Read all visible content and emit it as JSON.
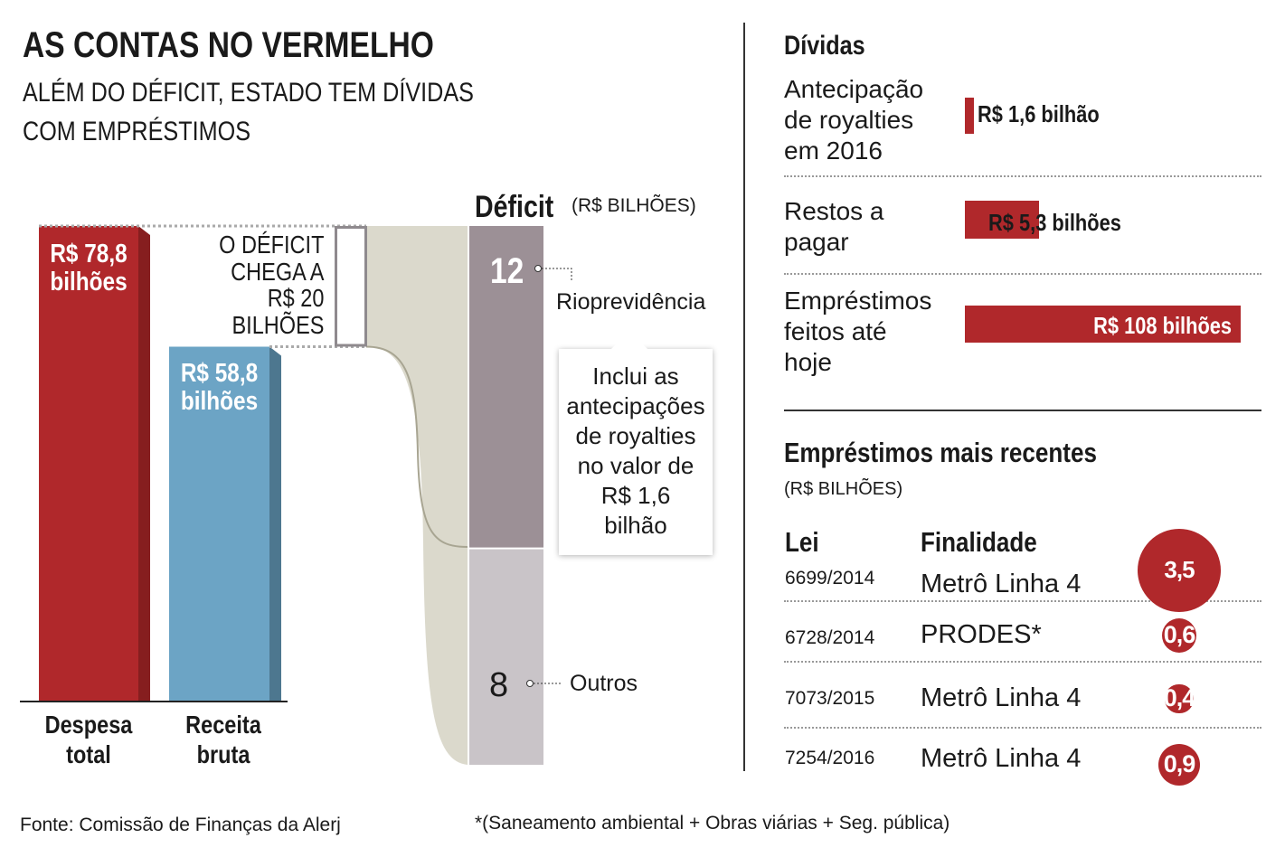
{
  "header": {
    "title": "AS CONTAS NO VERMELHO",
    "subtitle_1": "ALÉM DO DÉFICIT, ESTADO TEM DÍVIDAS",
    "subtitle_2": "COM EMPRÉSTIMOS"
  },
  "colors": {
    "red": "#b0282b",
    "red_dark": "#861e1f",
    "blue": "#6ca4c5",
    "blue_dark": "#4d778f",
    "deficit_12": "#9c9096",
    "deficit_8": "#c9c4c8",
    "flow": "#dbd9cc"
  },
  "chart_data": [
    {
      "type": "bar",
      "title": "",
      "categories": [
        "Despesa total",
        "Receita bruta"
      ],
      "values": [
        78.8,
        58.8
      ],
      "unit": "R$ bilhões",
      "labels": [
        {
          "line1": "R$ 78,8",
          "line2": "bilhões"
        },
        {
          "line1": "R$ 58,8",
          "line2": "bilhões"
        }
      ],
      "cat_lines": [
        [
          "Despesa",
          "total"
        ],
        [
          "Receita",
          "bruta"
        ]
      ],
      "annotation": [
        "O DÉFICIT",
        "CHEGA A",
        "R$ 20",
        "BILHÕES"
      ]
    },
    {
      "type": "bar",
      "stacked": true,
      "title": "Déficit",
      "unit": "(R$ BILHÕES)",
      "segments": [
        {
          "name": "Rioprevidência",
          "value": 12
        },
        {
          "name": "Outros",
          "value": 8
        }
      ],
      "callout": [
        "Inclui as",
        "antecipações",
        "de royalties",
        "no valor de",
        "R$ 1,6",
        "bilhão"
      ]
    },
    {
      "type": "bar",
      "title": "Dívidas",
      "categories": [
        [
          "Antecipação",
          "de royalties",
          "em 2016"
        ],
        [
          "Restos a",
          "pagar"
        ],
        [
          "Empréstimos",
          "feitos até",
          "hoje"
        ]
      ],
      "values": [
        1.6,
        5.3,
        108
      ],
      "labels": [
        "R$ 1,6 bilhão",
        "R$ 5,3 bilhões",
        "R$ 108 bilhões"
      ]
    },
    {
      "type": "table",
      "title": "Empréstimos mais recentes",
      "unit": "(R$ BILHÕES)",
      "columns": [
        "Lei",
        "Finalidade"
      ],
      "rows": [
        {
          "lei": "6699/2014",
          "finalidade": "Metrô Linha 4",
          "value": 3.5,
          "label": "3,5"
        },
        {
          "lei": "6728/2014",
          "finalidade": "PRODES*",
          "value": 0.6,
          "label": "0,6"
        },
        {
          "lei": "7073/2015",
          "finalidade": "Metrô Linha 4",
          "value": 0.4,
          "label": "0,4"
        },
        {
          "lei": "7254/2016",
          "finalidade": "Metrô Linha 4",
          "value": 0.9,
          "label": "0,9"
        }
      ]
    }
  ],
  "footer": {
    "source": "Fonte: Comissão de Finanças da Alerj",
    "note": "*(Saneamento ambiental + Obras viárias + Seg. pública)"
  }
}
